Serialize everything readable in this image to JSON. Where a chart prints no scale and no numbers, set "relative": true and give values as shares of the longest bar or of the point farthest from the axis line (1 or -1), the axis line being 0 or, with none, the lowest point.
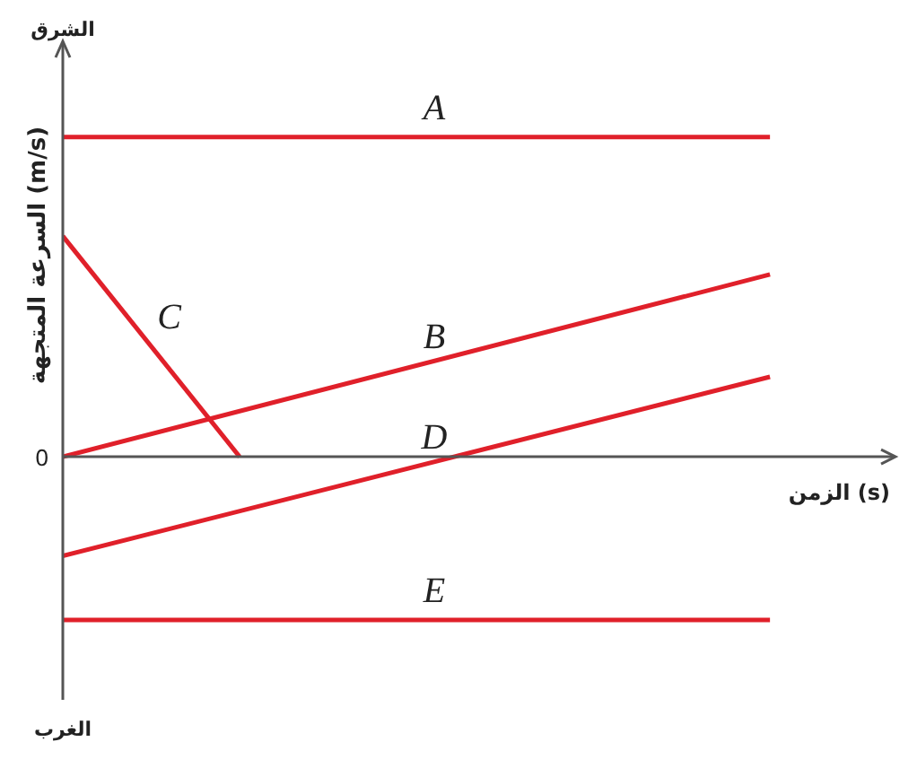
{
  "chart_data": {
    "type": "line",
    "relative": true,
    "xlabel": "الزمن (s)",
    "ylabel": "السرعة المتجهة (m/s)",
    "annotations": [
      "الشرق",
      "الغرب",
      "0"
    ],
    "grid": false,
    "legend": false,
    "marker": "none",
    "line_style": "solid",
    "categories": [
      null,
      null,
      null,
      null,
      null
    ],
    "series": [
      {
        "name": "A",
        "color": "#e0202a",
        "values": [
          1,
          null,
          null,
          null,
          1
        ]
      },
      {
        "name": "B",
        "color": "#e0202a",
        "values": [
          0,
          null,
          null,
          null,
          0.57
        ]
      },
      {
        "name": "C",
        "color": "#e0202a",
        "values": [
          0.69,
          0,
          null,
          null,
          null
        ]
      },
      {
        "name": "D",
        "color": "#e0202a",
        "values": [
          -0.31,
          null,
          null,
          null,
          0.25
        ]
      },
      {
        "name": "E",
        "color": "#e0202a",
        "values": [
          -0.51,
          null,
          null,
          null,
          -0.51
        ]
      }
    ]
  }
}
